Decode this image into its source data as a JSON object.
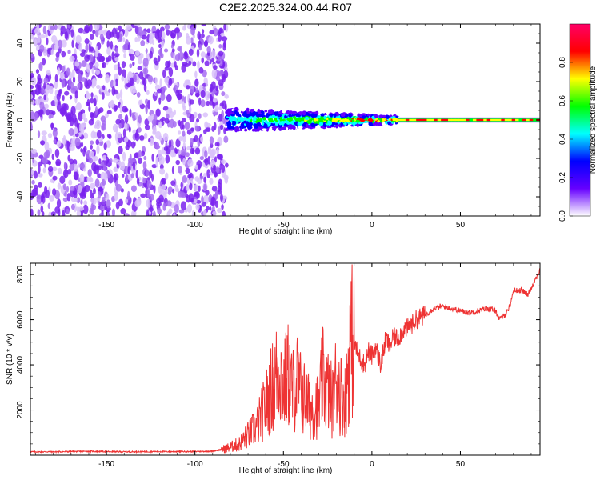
{
  "title": "C2E2.2025.324.00.44.R07",
  "chart_data": [
    {
      "type": "heatmap",
      "title": "C2E2.2025.324.00.44.R07",
      "xlabel": "Height of straight line (km)",
      "ylabel": "Frequency (Hz)",
      "xlim": [
        -193,
        95
      ],
      "ylim": [
        -50,
        50
      ],
      "xticks": [
        -150,
        -100,
        -50,
        0,
        50
      ],
      "yticks": [
        -40,
        -20,
        0,
        20,
        40
      ],
      "colorbar": {
        "label": "Normalized spectral amplitude",
        "range": [
          0,
          1
        ],
        "ticks": [
          "0.0",
          "0.2",
          "0.4",
          "0.6",
          "0.8"
        ],
        "colormap": [
          "#ffffff",
          "#6600ff",
          "#0000ff",
          "#00ffff",
          "#00ff00",
          "#ffff00",
          "#ff0000",
          "#ff0066"
        ]
      },
      "description_regions": [
        {
          "x_range": [
            -193,
            -82
          ],
          "content": "broadband noise across all frequencies"
        },
        {
          "x_range": [
            -82,
            15
          ],
          "content": "signal band near 0 Hz, spread about ±5 Hz"
        },
        {
          "x_range": [
            15,
            95
          ],
          "content": "narrow strong signal at 0 Hz"
        }
      ]
    },
    {
      "type": "line",
      "xlabel": "Height of straight line (km)",
      "ylabel": "SNR (10 * v/v)",
      "xlim": [
        -193,
        95
      ],
      "ylim": [
        0,
        8500
      ],
      "xticks": [
        -150,
        -100,
        -50,
        0,
        50
      ],
      "yticks": [
        2000,
        4000,
        6000,
        8000
      ],
      "color": "#ee3333",
      "series": [
        {
          "name": "SNR",
          "x": [
            -193,
            -180,
            -160,
            -140,
            -120,
            -100,
            -90,
            -85,
            -80,
            -75,
            -70,
            -65,
            -60,
            -55,
            -52,
            -50,
            -47,
            -45,
            -42,
            -40,
            -37,
            -35,
            -32,
            -30,
            -28,
            -25,
            -22,
            -20,
            -18,
            -16,
            -15,
            -12,
            -10,
            -8,
            -6,
            -4,
            -2,
            0,
            2,
            5,
            8,
            10,
            12,
            15,
            18,
            20,
            25,
            30,
            35,
            40,
            45,
            50,
            55,
            60,
            65,
            70,
            72,
            75,
            78,
            80,
            85,
            88,
            90,
            95
          ],
          "y": [
            150,
            150,
            170,
            150,
            160,
            160,
            180,
            250,
            350,
            500,
            900,
            1300,
            2200,
            3300,
            3900,
            3000,
            3600,
            2800,
            3300,
            2700,
            2400,
            2000,
            2300,
            2100,
            3400,
            2900,
            2300,
            3500,
            2800,
            2600,
            2400,
            5100,
            5000,
            4500,
            4200,
            4000,
            4600,
            4400,
            4800,
            4000,
            5200,
            4800,
            5200,
            5200,
            5600,
            5600,
            6000,
            6200,
            6500,
            6600,
            6500,
            6400,
            6300,
            6400,
            6500,
            6400,
            6000,
            6200,
            6600,
            7300,
            7300,
            7100,
            7400,
            8200
          ]
        }
      ]
    }
  ]
}
